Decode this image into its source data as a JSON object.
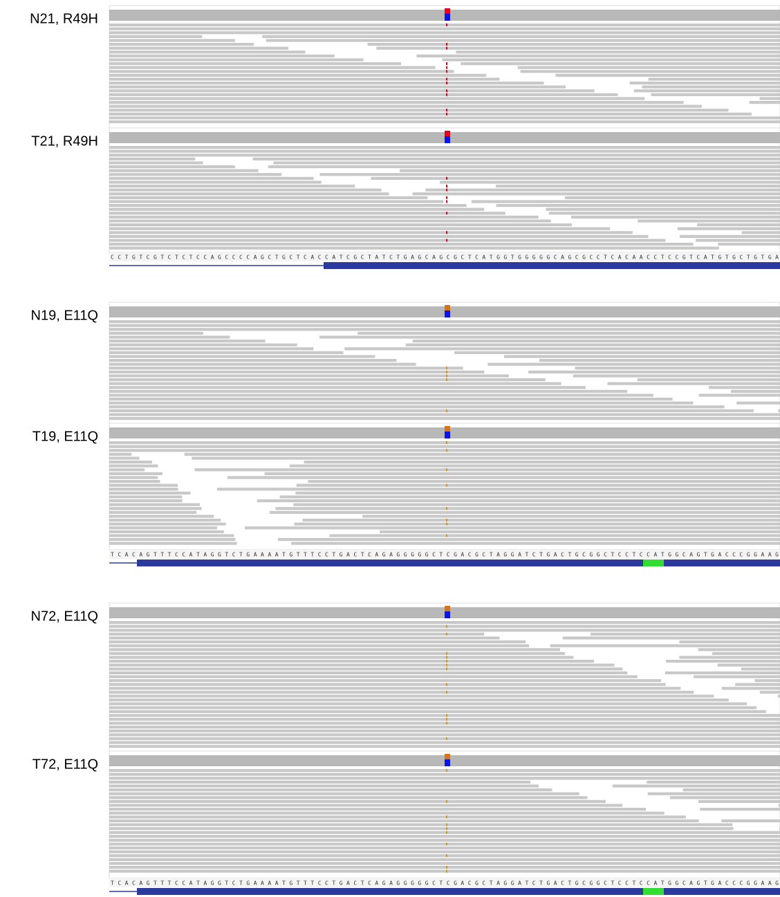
{
  "panels": [
    {
      "label": "N21, R49H"
    },
    {
      "label": "T21, R49H"
    },
    {
      "label": "N19, E11Q"
    },
    {
      "label": "T19, E11Q"
    },
    {
      "label": "N72, E11Q"
    },
    {
      "label": "T72, E11Q"
    }
  ],
  "sequences": [
    "CCTGTCGTCTCTCCAGCCCCAGCTGCTCACCATCGCTATCTGAGCAGCGCTCATGGTGGGGGCAGCGCCTCACAACCTCCGTCATGTGCTGTGA",
    "TCACAGTTTCCATAGGTCTGAAAATGTTTCCTGACTCAGAGGGGGCTCGACGCTAGGATCTGACTGCGGCTCCTCCATGGCAGTGACCCGGAAG",
    "TCACAGTTTCCATAGGTCTGAAAATGTTTCCTGACTCAGAGGGGGCTCGACGCTAGGATCTGACTGCGGCTCCTCCATGGCAGTGACCCGGAAG"
  ]
}
